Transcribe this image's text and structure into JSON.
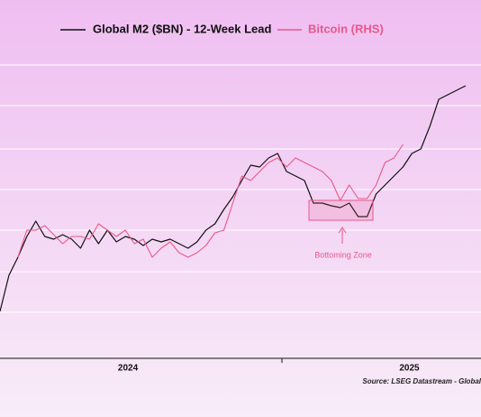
{
  "chart_data": {
    "type": "line",
    "source": "Source: LSEG Datastream - Global",
    "x": [
      2023.9,
      2023.935,
      2023.97,
      2024.005,
      2024.04,
      2024.075,
      2024.11,
      2024.145,
      2024.18,
      2024.215,
      2024.25,
      2024.285,
      2024.32,
      2024.355,
      2024.39,
      2024.425,
      2024.46,
      2024.495,
      2024.53,
      2024.565,
      2024.6,
      2024.635,
      2024.67,
      2024.705,
      2024.74,
      2024.775,
      2024.81,
      2024.845,
      2024.88,
      2024.915,
      2024.95,
      2024.985,
      2025.02,
      2025.055,
      2025.09,
      2025.125,
      2025.16,
      2025.195,
      2025.23,
      2025.265,
      2025.3,
      2025.335,
      2025.37,
      2025.405,
      2025.44,
      2025.475,
      2025.51,
      2025.545,
      2025.58,
      2025.615,
      2025.65,
      2025.685,
      2025.72
    ],
    "series": [
      {
        "name": "Global M2 ($BN) - 12-Week Lead",
        "color": "#111111",
        "values": [
          52,
          92,
          112,
          135,
          152,
          135,
          132,
          137,
          132,
          122,
          142,
          127,
          142,
          129,
          135,
          132,
          125,
          132,
          129,
          132,
          127,
          122,
          129,
          142,
          149,
          165,
          179,
          197,
          214,
          212,
          222,
          227,
          207,
          202,
          197,
          172,
          172,
          169,
          167,
          172,
          157,
          157,
          182,
          192,
          202,
          212,
          227,
          232,
          257,
          287,
          292,
          297,
          302
        ]
      },
      {
        "name": "Bitcoin (RHS)",
        "color": "#e8588a",
        "values": [
          null,
          null,
          112,
          142,
          142,
          147,
          137,
          127,
          135,
          135,
          132,
          149,
          142,
          135,
          142,
          127,
          132,
          112,
          122,
          129,
          117,
          112,
          117,
          125,
          139,
          142,
          172,
          202,
          197,
          207,
          217,
          222,
          212,
          222,
          217,
          212,
          207,
          197,
          175,
          192,
          177,
          177,
          192,
          217,
          222,
          237,
          null,
          null,
          null,
          null,
          null,
          null,
          null
        ]
      }
    ],
    "xlim": [
      2023.9,
      2025.78
    ],
    "xticks": [
      {
        "value": 2024.4,
        "label": "2024"
      },
      {
        "value": 2025.5,
        "label": "2025"
      }
    ],
    "ylim": [
      0,
      347
    ],
    "yticks": [
      51,
      96,
      142,
      187,
      232,
      280,
      325
    ],
    "grid": true,
    "annotations": [
      {
        "text": "Bottoming Zone"
      }
    ]
  }
}
